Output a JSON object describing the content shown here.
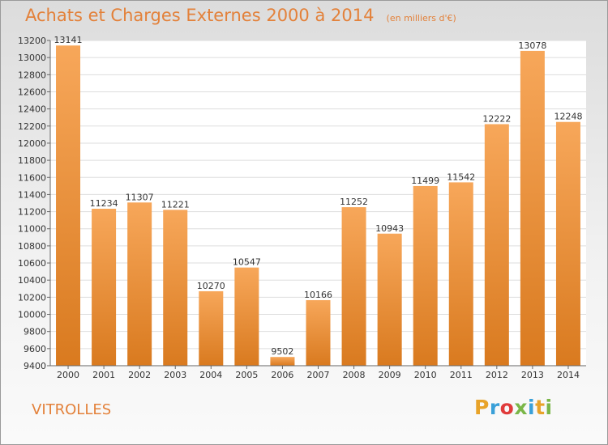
{
  "header": {
    "title": "Achats et Charges Externes 2000 à 2014",
    "unit": "(en milliers d'€)"
  },
  "footer": {
    "commune": "VITROLLES",
    "logo_text": "Proxiti"
  },
  "colors": {
    "bar_light": "#f7a75a",
    "bar_dark": "#d97a1f",
    "accent": "#e3813a",
    "grid": "#dddddd"
  },
  "chart_data": {
    "type": "bar",
    "title": "Achats et Charges Externes 2000 à 2014",
    "subtitle": "(en milliers d'€)",
    "xlabel": "",
    "ylabel": "",
    "categories": [
      "2000",
      "2001",
      "2002",
      "2003",
      "2004",
      "2005",
      "2006",
      "2007",
      "2008",
      "2009",
      "2010",
      "2011",
      "2012",
      "2013",
      "2014"
    ],
    "values": [
      13141,
      11234,
      11307,
      11221,
      10270,
      10547,
      9502,
      10166,
      11252,
      10943,
      11499,
      11542,
      12222,
      13078,
      12248
    ],
    "ylim": [
      9400,
      13200
    ],
    "yticks": [
      9400,
      9600,
      9800,
      10000,
      10200,
      10400,
      10600,
      10800,
      11000,
      11200,
      11400,
      11600,
      11800,
      12000,
      12200,
      12400,
      12600,
      12800,
      13000,
      13200
    ],
    "grid": true,
    "data_labels": true
  }
}
